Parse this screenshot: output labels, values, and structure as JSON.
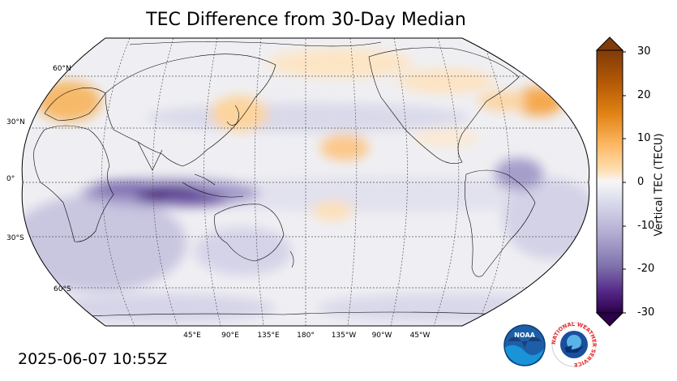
{
  "title": "TEC Difference from 30-Day Median",
  "timestamp": "2025-06-07 10:55Z",
  "lat_labels": [
    "60°N",
    "30°N",
    "0°",
    "30°S",
    "60°S"
  ],
  "lon_labels": [
    "45°E",
    "90°E",
    "135°E",
    "180°",
    "135°W",
    "90°W",
    "45°W"
  ],
  "colorbar": {
    "label": "Vertical TEC (TECU)",
    "ticks": [
      "30",
      "20",
      "10",
      "0",
      "-10",
      "-20",
      "-30"
    ],
    "min": -30,
    "max": 30,
    "colors": {
      "negative_end": "#2d004b",
      "neutral": "#f7f7f7",
      "positive_end": "#7f3b08"
    }
  },
  "logos": {
    "noaa": "NOAA",
    "nws": "NATIONAL WEATHER SERVICE"
  },
  "icons": {
    "noaa_logo": "noaa-logo-icon",
    "nws_logo": "nws-logo-icon"
  }
}
